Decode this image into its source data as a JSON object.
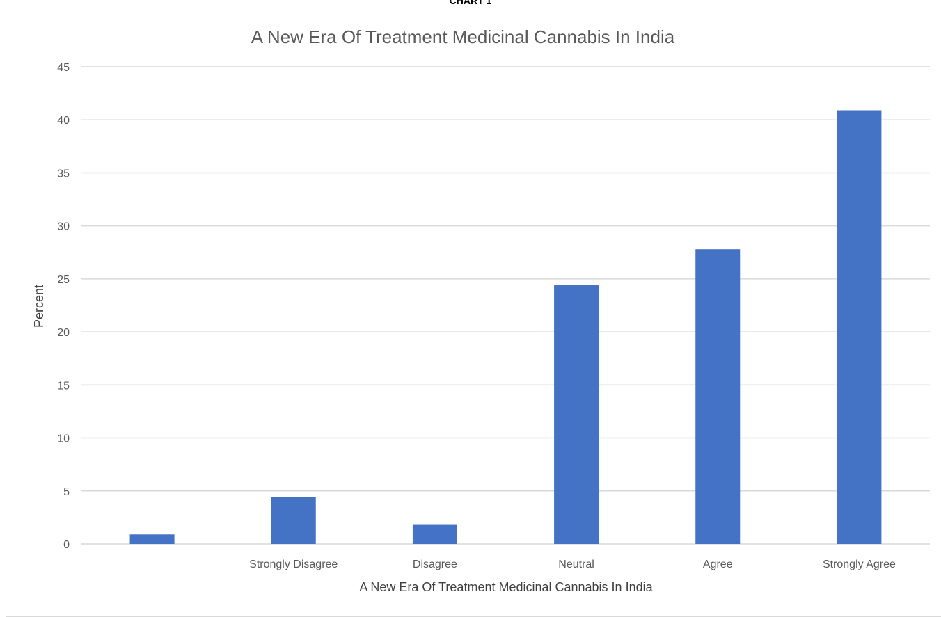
{
  "page_caption": "CHART 1",
  "chart_data": {
    "type": "bar",
    "title": "A New Era Of Treatment Medicinal Cannabis In India",
    "xlabel": "A New Era Of Treatment Medicinal Cannabis In India",
    "ylabel": "Percent",
    "categories": [
      "",
      "Strongly Disagree",
      "Disagree",
      "Neutral",
      "Agree",
      "Strongly Agree"
    ],
    "values": [
      0.9,
      4.4,
      1.8,
      24.4,
      27.8,
      40.9
    ],
    "ylim": [
      0,
      45
    ],
    "yticks": [
      0,
      5,
      10,
      15,
      20,
      25,
      30,
      35,
      40,
      45
    ],
    "grid": true,
    "legend": "none",
    "bar_color": "#4472C4",
    "grid_color": "#d9d9d9"
  }
}
